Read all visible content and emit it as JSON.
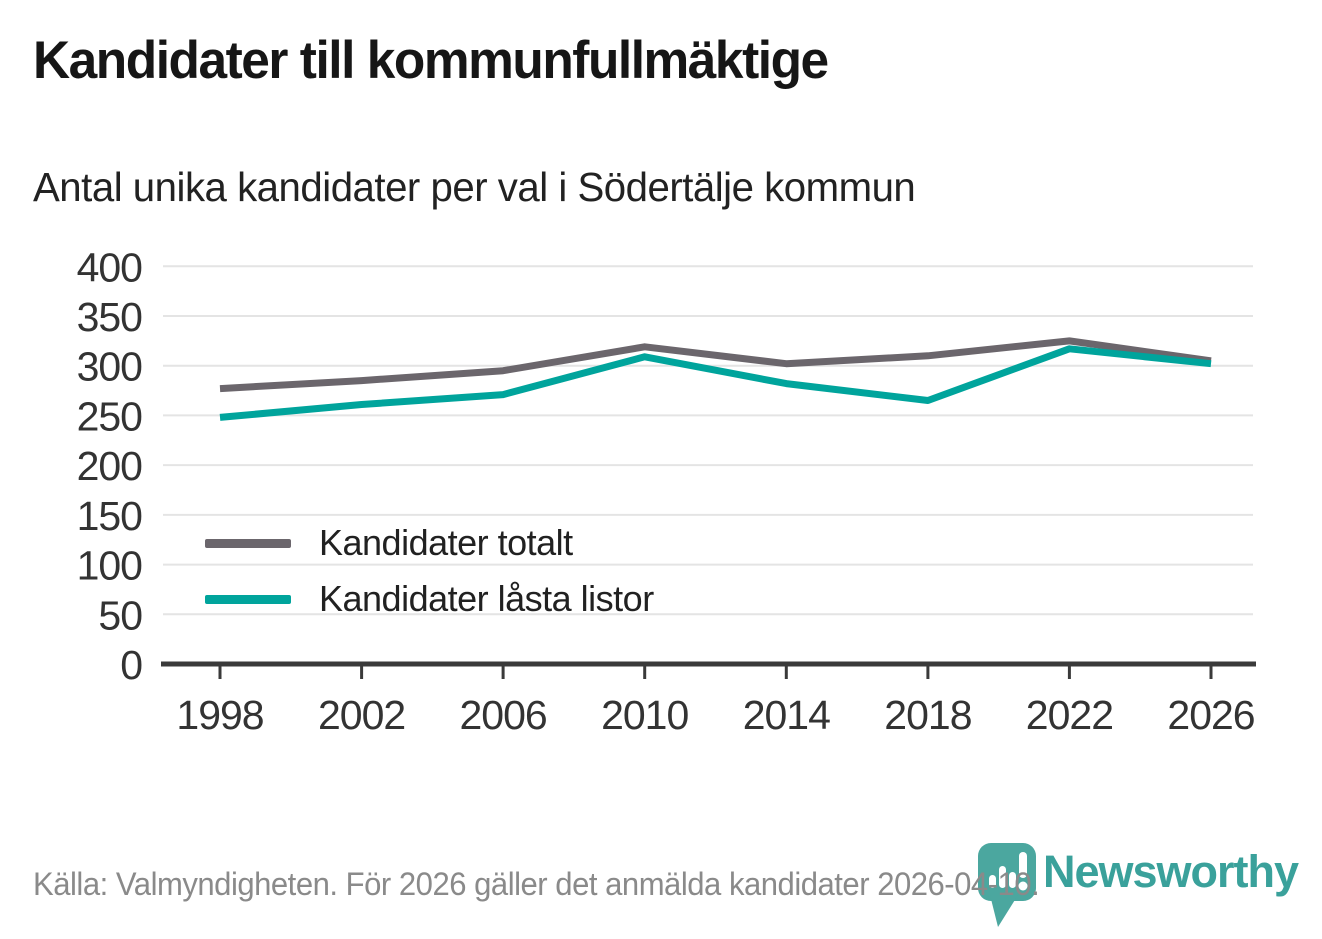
{
  "header": {
    "title": "Kandidater till kommunfullmäktige",
    "subtitle": "Antal unika kandidater per val i Södertälje kommun"
  },
  "chart_data": {
    "type": "line",
    "x": [
      1998,
      2002,
      2006,
      2010,
      2014,
      2018,
      2022,
      2026
    ],
    "series": [
      {
        "name": "Kandidater totalt",
        "color": "#6b666c",
        "values": [
          277,
          285,
          295,
          319,
          302,
          310,
          325,
          305
        ]
      },
      {
        "name": "Kandidater låsta listor",
        "color": "#00a49c",
        "values": [
          248,
          261,
          271,
          309,
          282,
          265,
          317,
          302
        ]
      }
    ],
    "title": "Kandidater till kommunfullmäktige",
    "subtitle": "Antal unika kandidater per val i Södertälje kommun",
    "xlabel": "",
    "ylabel": "",
    "ylim": [
      0,
      400
    ],
    "y_ticks": [
      0,
      50,
      100,
      150,
      200,
      250,
      300,
      350,
      400
    ],
    "grid": "horizontal",
    "legend_position": "inside-left"
  },
  "footer": {
    "source": "Källa: Valmyndigheten. För 2026 gäller det anmälda kandidater 2026-04-10."
  },
  "logo": {
    "wordmark": "Newsworthy",
    "icon": "newsworthy-pin-icon",
    "wordmark_color": "#3aa19b",
    "pin_color": "#4ba79f"
  },
  "colors": {
    "axis": "#3a3a3a",
    "grid": "#e4e4e4",
    "tick_label": "#333333",
    "title_text": "#161616",
    "footer_text": "#8a8a8a"
  }
}
